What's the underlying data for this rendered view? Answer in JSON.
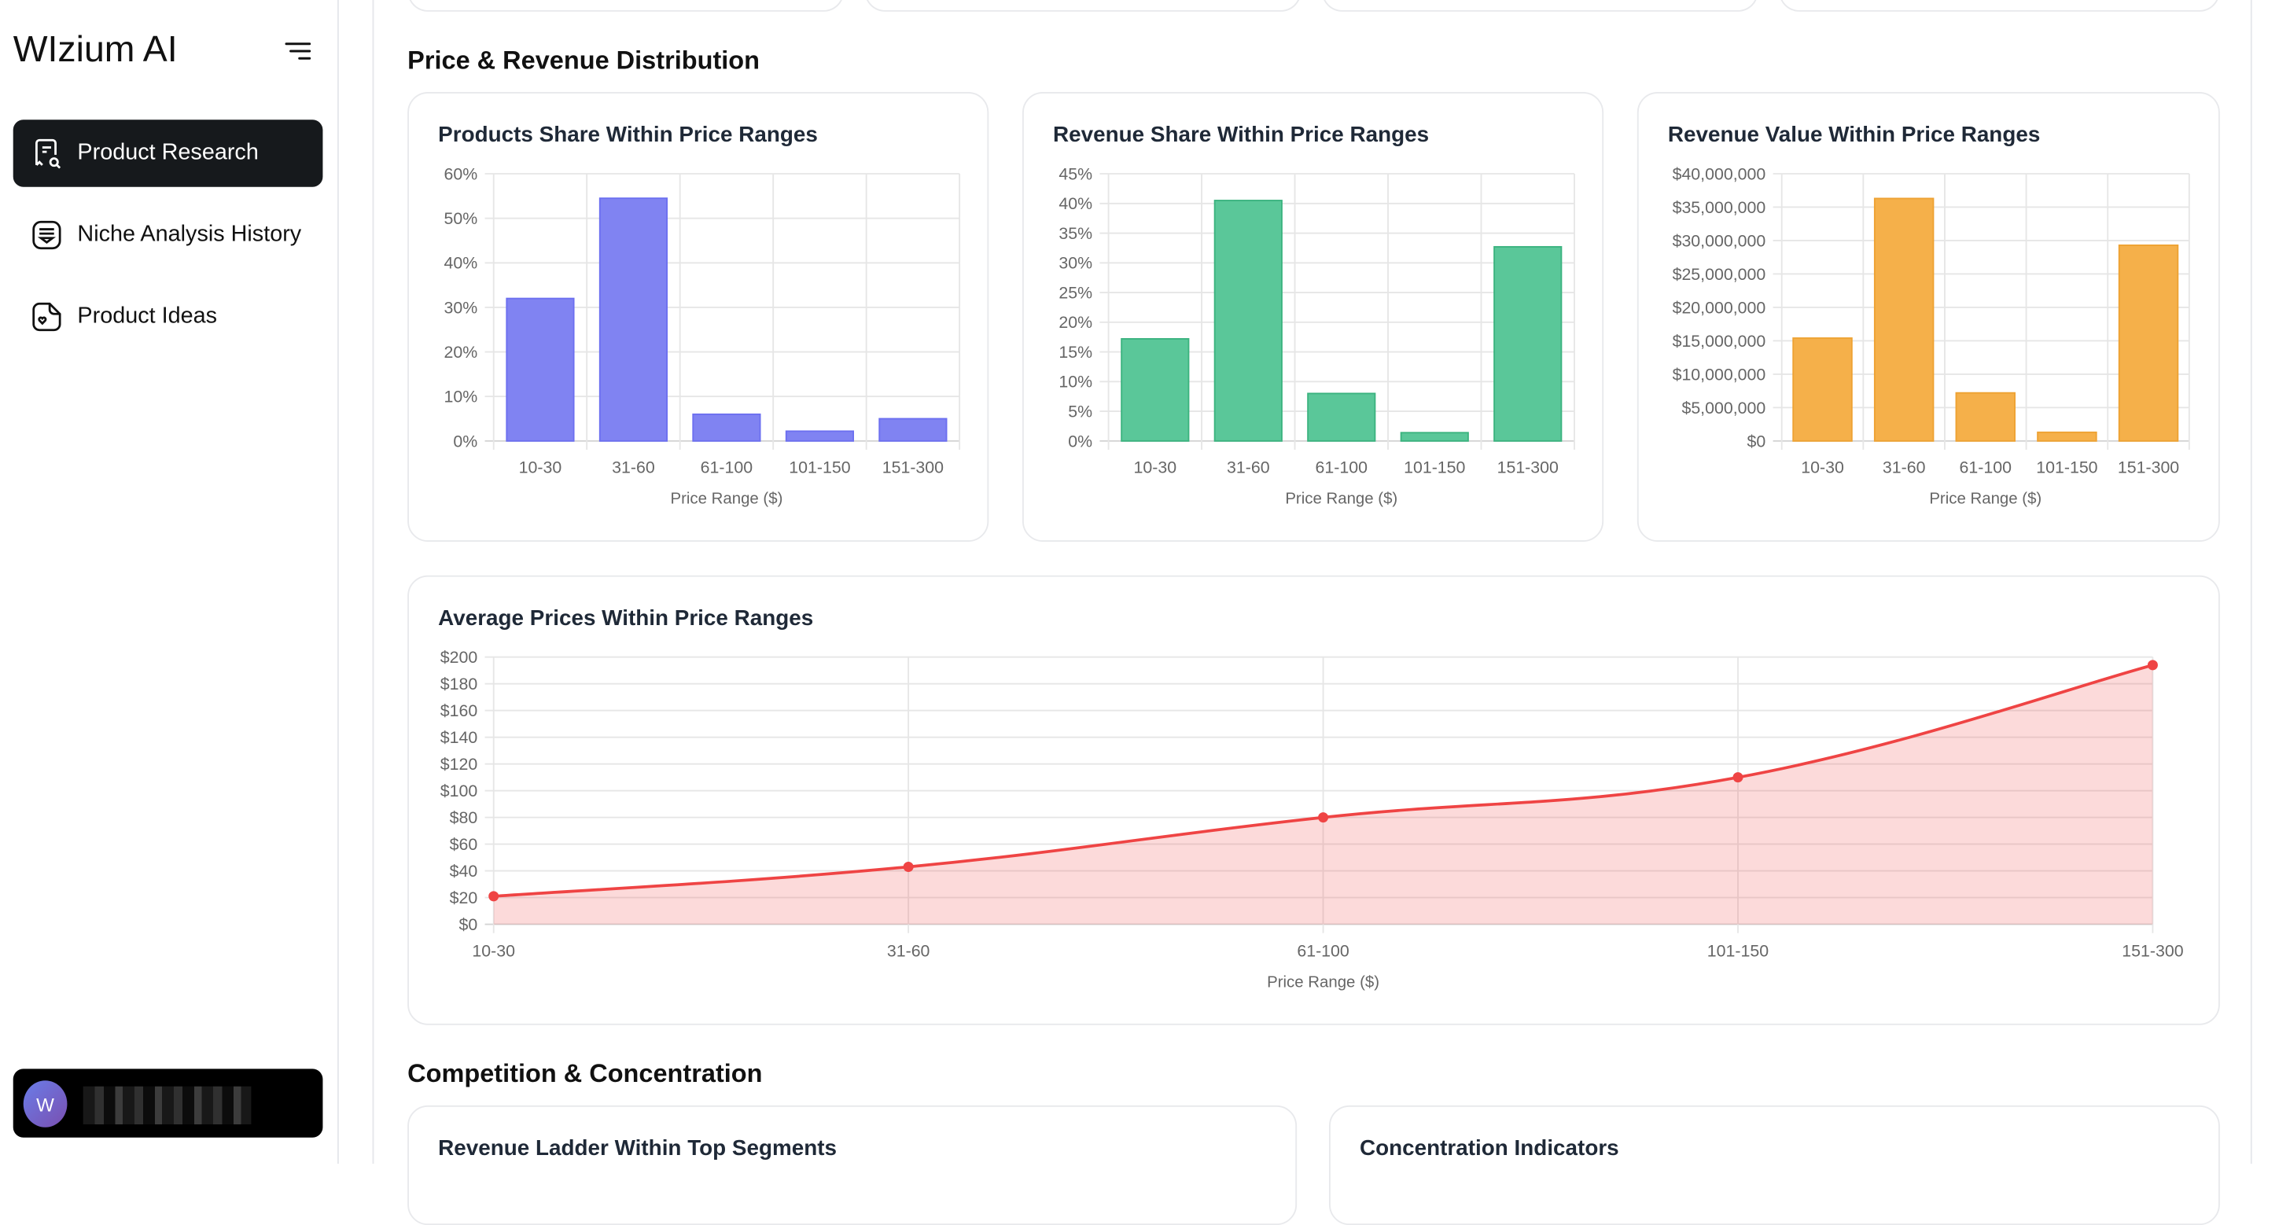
{
  "sidebar": {
    "logo": "WIzium AI",
    "items": [
      {
        "label": "Product Research",
        "icon": "receipt-search-icon",
        "active": true
      },
      {
        "label": "Niche Analysis History",
        "icon": "message-list-icon",
        "active": false
      },
      {
        "label": "Product Ideas",
        "icon": "file-heart-icon",
        "active": false
      }
    ],
    "user": {
      "initial": "W"
    }
  },
  "sections": {
    "price_revenue": "Price & Revenue Distribution",
    "competition": "Competition & Concentration"
  },
  "bottom_cards": {
    "left_title": "Revenue Ladder Within Top Segments",
    "right_title": "Concentration Indicators"
  },
  "colors": {
    "purple": "#8083f2",
    "green": "#5ac799",
    "orange": "#f5b04a",
    "red": "#ef4444"
  },
  "chart_data": [
    {
      "type": "bar",
      "title": "Products Share Within Price Ranges",
      "categories": [
        "10-30",
        "31-60",
        "61-100",
        "101-150",
        "151-300"
      ],
      "values": [
        32,
        54.5,
        6,
        2.2,
        5
      ],
      "xlabel": "Price Range ($)",
      "ylabel": "",
      "ylim": [
        0,
        60
      ],
      "yticks": [
        0,
        10,
        20,
        30,
        40,
        50,
        60
      ],
      "ytick_labels": [
        "0%",
        "10%",
        "20%",
        "30%",
        "40%",
        "50%",
        "60%"
      ],
      "grid": true
    },
    {
      "type": "bar",
      "title": "Revenue Share Within Price Ranges",
      "categories": [
        "10-30",
        "31-60",
        "61-100",
        "101-150",
        "151-300"
      ],
      "values": [
        17.2,
        40.5,
        8,
        1.4,
        32.7
      ],
      "xlabel": "Price Range ($)",
      "ylabel": "",
      "ylim": [
        0,
        45
      ],
      "yticks": [
        0,
        5,
        10,
        15,
        20,
        25,
        30,
        35,
        40,
        45
      ],
      "ytick_labels": [
        "0%",
        "5%",
        "10%",
        "15%",
        "20%",
        "25%",
        "30%",
        "35%",
        "40%",
        "45%"
      ],
      "grid": true
    },
    {
      "type": "bar",
      "title": "Revenue Value Within Price Ranges",
      "categories": [
        "10-30",
        "31-60",
        "61-100",
        "101-150",
        "151-300"
      ],
      "values": [
        15400000,
        36300000,
        7200000,
        1300000,
        29300000
      ],
      "xlabel": "Price Range ($)",
      "ylabel": "",
      "ylim": [
        0,
        40000000
      ],
      "yticks": [
        0,
        5000000,
        10000000,
        15000000,
        20000000,
        25000000,
        30000000,
        35000000,
        40000000
      ],
      "ytick_labels": [
        "$0",
        "$5,000,000",
        "$10,000,000",
        "$15,000,000",
        "$20,000,000",
        "$25,000,000",
        "$30,000,000",
        "$35,000,000",
        "$40,000,000"
      ],
      "grid": true
    },
    {
      "type": "area",
      "title": "Average Prices Within Price Ranges",
      "categories": [
        "10-30",
        "31-60",
        "61-100",
        "101-150",
        "151-300"
      ],
      "values": [
        21,
        43,
        80,
        110,
        194
      ],
      "xlabel": "Price Range ($)",
      "ylabel": "",
      "ylim": [
        0,
        200
      ],
      "yticks": [
        0,
        20,
        40,
        60,
        80,
        100,
        120,
        140,
        160,
        180,
        200
      ],
      "ytick_labels": [
        "$0",
        "$20",
        "$40",
        "$60",
        "$80",
        "$100",
        "$120",
        "$140",
        "$160",
        "$180",
        "$200"
      ],
      "grid": true
    }
  ]
}
